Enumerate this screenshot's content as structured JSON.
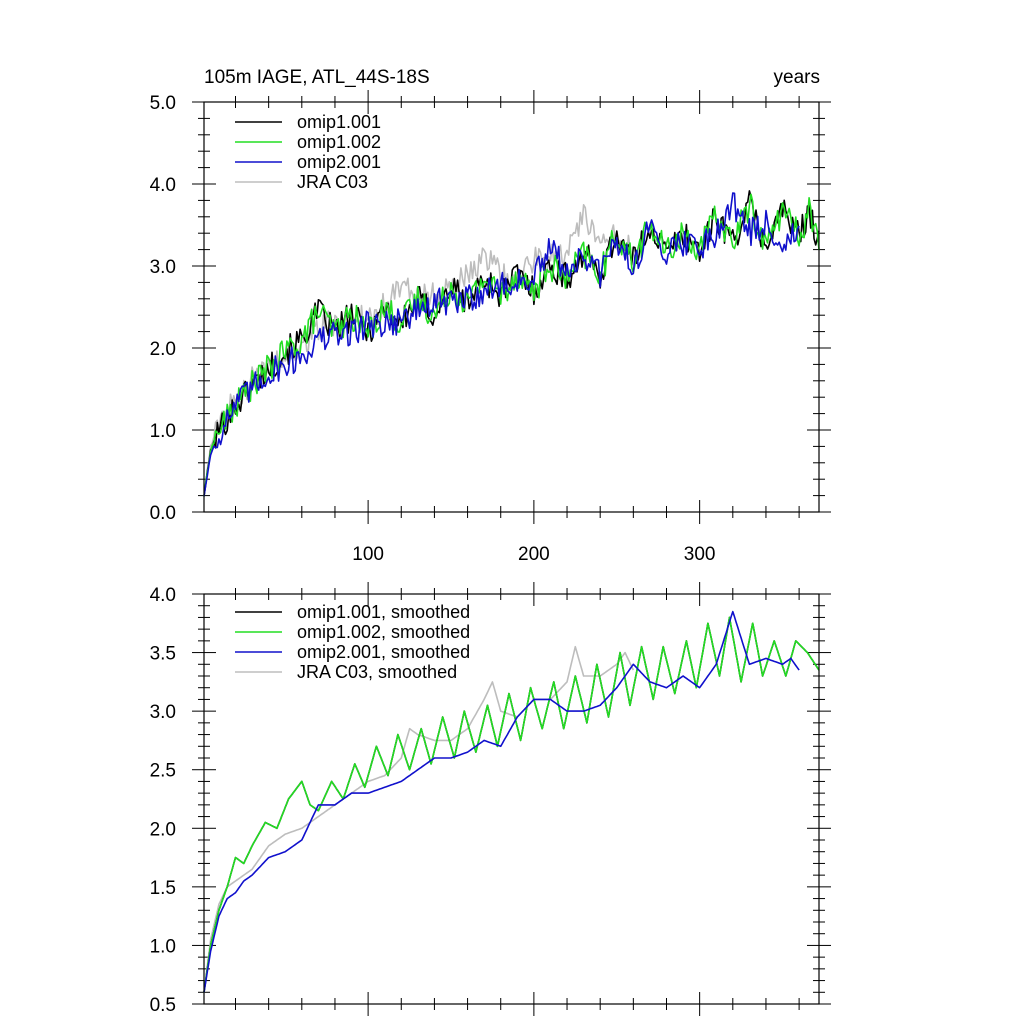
{
  "colors": {
    "omip1_001": "#000000",
    "omip1_002": "#22dd22",
    "omip2_001": "#1010cc",
    "jra_c03": "#bdbdbd"
  },
  "chart_data": [
    {
      "type": "line",
      "title_left": "105m IAGE, ATL_44S-18S",
      "title_right": "years",
      "xlabel": "",
      "ylabel": "",
      "xlim": [
        1,
        372
      ],
      "ylim": [
        0.0,
        5.0
      ],
      "y_ticks": [
        "0.0",
        "1.0",
        "2.0",
        "3.0",
        "4.0",
        "5.0"
      ],
      "x_ticks": [
        "100",
        "200",
        "300"
      ],
      "legend_position": "top-left",
      "series": [
        {
          "name": "omip1.001",
          "color": "#000000",
          "x": [
            1,
            5,
            10,
            20,
            30,
            40,
            50,
            60,
            70,
            80,
            90,
            100,
            110,
            120,
            130,
            140,
            150,
            160,
            170,
            180,
            190,
            200,
            210,
            220,
            230,
            240,
            250,
            260,
            270,
            280,
            290,
            300,
            310,
            320,
            330,
            340,
            350,
            360,
            366,
            372
          ],
          "y": [
            0.2,
            0.75,
            1.0,
            1.3,
            1.55,
            1.75,
            1.95,
            2.1,
            2.45,
            2.2,
            2.4,
            2.2,
            2.5,
            2.3,
            2.6,
            2.4,
            2.75,
            2.55,
            2.85,
            2.65,
            2.9,
            2.7,
            3.0,
            2.85,
            3.15,
            2.9,
            3.4,
            3.05,
            3.5,
            3.15,
            3.4,
            3.2,
            3.6,
            3.3,
            3.75,
            3.25,
            3.7,
            3.35,
            3.7,
            3.3
          ]
        },
        {
          "name": "omip1.002",
          "color": "#22dd22",
          "x": [
            1,
            5,
            10,
            20,
            30,
            40,
            50,
            60,
            70,
            80,
            90,
            100,
            110,
            120,
            130,
            140,
            150,
            160,
            170,
            180,
            190,
            200,
            210,
            220,
            230,
            240,
            250,
            260,
            270,
            280,
            290,
            300,
            310,
            320,
            330,
            340,
            350,
            360,
            366,
            372
          ],
          "y": [
            0.2,
            0.75,
            1.0,
            1.3,
            1.55,
            1.75,
            1.95,
            2.1,
            2.45,
            2.2,
            2.4,
            2.2,
            2.5,
            2.3,
            2.6,
            2.4,
            2.75,
            2.55,
            2.85,
            2.65,
            2.9,
            2.7,
            3.0,
            2.85,
            3.15,
            2.9,
            3.4,
            3.05,
            3.5,
            3.15,
            3.4,
            3.2,
            3.6,
            3.3,
            3.75,
            3.25,
            3.7,
            3.35,
            3.7,
            3.3
          ]
        },
        {
          "name": "omip2.001",
          "color": "#1010cc",
          "x": [
            1,
            5,
            10,
            20,
            30,
            40,
            50,
            60,
            70,
            80,
            90,
            100,
            110,
            120,
            130,
            140,
            150,
            160,
            170,
            180,
            190,
            200,
            210,
            220,
            230,
            240,
            250,
            260,
            270,
            280,
            290,
            300,
            310,
            320,
            330,
            340,
            350,
            360
          ],
          "y": [
            0.2,
            0.7,
            0.95,
            1.3,
            1.5,
            1.7,
            1.8,
            1.9,
            2.1,
            2.15,
            2.2,
            2.3,
            2.3,
            2.35,
            2.45,
            2.55,
            2.55,
            2.6,
            2.7,
            2.75,
            2.8,
            2.85,
            3.2,
            2.95,
            3.1,
            2.9,
            3.3,
            3.0,
            3.45,
            3.2,
            3.3,
            3.25,
            3.4,
            3.8,
            3.4,
            3.5,
            3.3,
            3.4
          ]
        },
        {
          "name": "JRA C03",
          "color": "#bdbdbd",
          "x": [
            1,
            5,
            10,
            20,
            30,
            40,
            50,
            60,
            70,
            80,
            90,
            100,
            110,
            120,
            130,
            140,
            150,
            160,
            170,
            180,
            190,
            200,
            210,
            220,
            230,
            240,
            250,
            260
          ],
          "y": [
            0.2,
            0.8,
            1.05,
            1.35,
            1.6,
            1.75,
            1.9,
            2.05,
            2.25,
            2.3,
            2.3,
            2.4,
            2.5,
            2.8,
            2.6,
            2.7,
            2.75,
            2.85,
            3.1,
            2.9,
            2.85,
            3.05,
            3.1,
            3.2,
            3.6,
            3.25,
            3.35,
            3.2
          ]
        }
      ]
    },
    {
      "type": "line",
      "xlabel": "",
      "ylabel": "",
      "xlim": [
        1,
        372
      ],
      "ylim": [
        0.5,
        4.0
      ],
      "y_ticks": [
        "0.5",
        "1.0",
        "1.5",
        "2.0",
        "2.5",
        "3.0",
        "3.5",
        "4.0"
      ],
      "legend_position": "top-left",
      "series": [
        {
          "name": "omip1.001, smoothed",
          "color": "#000000",
          "x": [
            1,
            5,
            10,
            15,
            20,
            25,
            30,
            38,
            45,
            52,
            60,
            65,
            70,
            78,
            85,
            92,
            98,
            105,
            112,
            118,
            125,
            132,
            138,
            145,
            152,
            158,
            165,
            172,
            178,
            185,
            192,
            198,
            205,
            212,
            218,
            225,
            232,
            238,
            245,
            252,
            258,
            265,
            272,
            278,
            285,
            292,
            298,
            305,
            312,
            318,
            325,
            332,
            338,
            345,
            352,
            358,
            365,
            372
          ],
          "y": [
            0.6,
            1.0,
            1.3,
            1.5,
            1.75,
            1.7,
            1.85,
            2.05,
            2.0,
            2.25,
            2.4,
            2.2,
            2.15,
            2.4,
            2.25,
            2.55,
            2.35,
            2.7,
            2.45,
            2.8,
            2.5,
            2.85,
            2.55,
            2.95,
            2.6,
            3.0,
            2.65,
            3.05,
            2.7,
            3.15,
            2.75,
            3.2,
            2.85,
            3.25,
            2.85,
            3.3,
            2.9,
            3.4,
            2.95,
            3.5,
            3.05,
            3.55,
            3.1,
            3.55,
            3.15,
            3.6,
            3.2,
            3.75,
            3.3,
            3.8,
            3.25,
            3.75,
            3.3,
            3.6,
            3.3,
            3.6,
            3.5,
            3.35
          ]
        },
        {
          "name": "omip1.002, smoothed",
          "color": "#22dd22",
          "x": [
            1,
            5,
            10,
            15,
            20,
            25,
            30,
            38,
            45,
            52,
            60,
            65,
            70,
            78,
            85,
            92,
            98,
            105,
            112,
            118,
            125,
            132,
            138,
            145,
            152,
            158,
            165,
            172,
            178,
            185,
            192,
            198,
            205,
            212,
            218,
            225,
            232,
            238,
            245,
            252,
            258,
            265,
            272,
            278,
            285,
            292,
            298,
            305,
            312,
            318,
            325,
            332,
            338,
            345,
            352,
            358,
            365,
            372
          ],
          "y": [
            0.6,
            1.0,
            1.3,
            1.5,
            1.75,
            1.7,
            1.85,
            2.05,
            2.0,
            2.25,
            2.4,
            2.2,
            2.15,
            2.4,
            2.25,
            2.55,
            2.35,
            2.7,
            2.45,
            2.8,
            2.5,
            2.85,
            2.55,
            2.95,
            2.6,
            3.0,
            2.65,
            3.05,
            2.7,
            3.15,
            2.75,
            3.2,
            2.85,
            3.25,
            2.85,
            3.3,
            2.9,
            3.4,
            2.95,
            3.5,
            3.05,
            3.55,
            3.1,
            3.55,
            3.15,
            3.6,
            3.2,
            3.75,
            3.3,
            3.8,
            3.25,
            3.75,
            3.3,
            3.6,
            3.3,
            3.6,
            3.5,
            3.35
          ]
        },
        {
          "name": "omip2.001, smoothed",
          "color": "#1010cc",
          "x": [
            1,
            5,
            10,
            15,
            20,
            25,
            30,
            40,
            50,
            60,
            70,
            80,
            90,
            100,
            110,
            120,
            130,
            140,
            150,
            160,
            170,
            180,
            190,
            200,
            210,
            220,
            230,
            240,
            250,
            260,
            270,
            280,
            290,
            300,
            310,
            320,
            330,
            340,
            350,
            355,
            360
          ],
          "y": [
            0.6,
            0.95,
            1.25,
            1.4,
            1.45,
            1.55,
            1.6,
            1.75,
            1.8,
            1.9,
            2.2,
            2.2,
            2.3,
            2.3,
            2.35,
            2.4,
            2.5,
            2.6,
            2.6,
            2.65,
            2.75,
            2.7,
            2.95,
            3.1,
            3.1,
            3.0,
            3.0,
            3.05,
            3.2,
            3.4,
            3.25,
            3.2,
            3.3,
            3.2,
            3.4,
            3.85,
            3.4,
            3.45,
            3.4,
            3.45,
            3.35
          ]
        },
        {
          "name": "JRA C03, smoothed",
          "color": "#bdbdbd",
          "x": [
            1,
            5,
            10,
            15,
            20,
            30,
            40,
            50,
            60,
            70,
            80,
            90,
            100,
            110,
            120,
            125,
            130,
            140,
            150,
            160,
            170,
            175,
            180,
            190,
            200,
            210,
            220,
            225,
            230,
            240,
            250,
            255,
            260
          ],
          "y": [
            0.6,
            1.05,
            1.35,
            1.5,
            1.55,
            1.65,
            1.85,
            1.95,
            2.0,
            2.1,
            2.2,
            2.3,
            2.4,
            2.45,
            2.6,
            2.85,
            2.8,
            2.75,
            2.75,
            2.85,
            3.1,
            3.25,
            3.0,
            2.95,
            3.1,
            3.1,
            3.25,
            3.55,
            3.3,
            3.3,
            3.4,
            3.5,
            3.35
          ]
        }
      ]
    }
  ]
}
